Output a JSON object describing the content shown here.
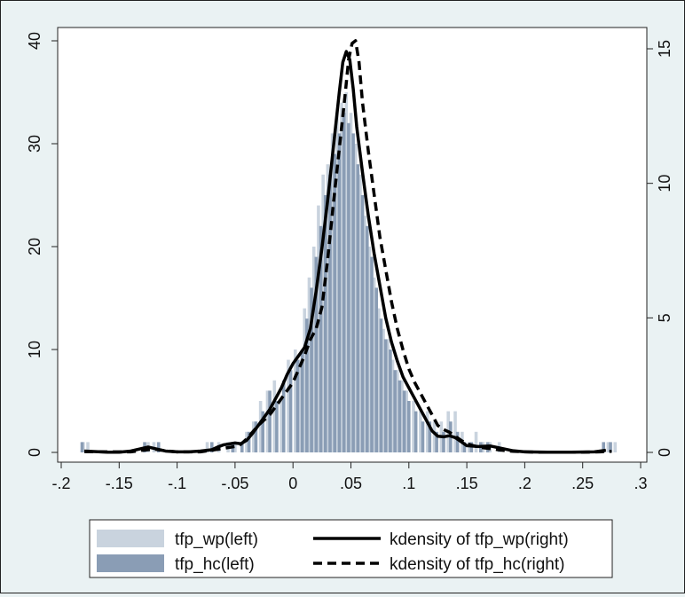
{
  "chart_data": {
    "type": "histogram-density",
    "title": "",
    "xlabel": "",
    "ylabel_left": "",
    "ylabel_right": "",
    "x_range": [
      -0.2,
      0.3
    ],
    "y_left_range": [
      0,
      40
    ],
    "y_right_range": [
      0,
      15
    ],
    "x_ticks": [
      {
        "value": -0.2,
        "label": "-.2"
      },
      {
        "value": -0.15,
        "label": "-.15"
      },
      {
        "value": -0.1,
        "label": "-.1"
      },
      {
        "value": -0.05,
        "label": "-.05"
      },
      {
        "value": 0,
        "label": "0"
      },
      {
        "value": 0.05,
        "label": ".05"
      },
      {
        "value": 0.1,
        "label": ".1"
      },
      {
        "value": 0.15,
        "label": ".15"
      },
      {
        "value": 0.2,
        "label": ".2"
      },
      {
        "value": 0.25,
        "label": ".25"
      },
      {
        "value": 0.3,
        "label": ".3"
      }
    ],
    "y_left_ticks": [
      {
        "value": 0,
        "label": "0"
      },
      {
        "value": 10,
        "label": "10"
      },
      {
        "value": 20,
        "label": "20"
      },
      {
        "value": 30,
        "label": "30"
      },
      {
        "value": 40,
        "label": "40"
      }
    ],
    "y_right_ticks": [
      {
        "value": 0,
        "label": "0"
      },
      {
        "value": 5,
        "label": "5"
      },
      {
        "value": 10,
        "label": "10"
      },
      {
        "value": 15,
        "label": "15"
      }
    ],
    "histograms": [
      {
        "name": "tfp_wp(left)",
        "color": "#c9d3de",
        "bins": [
          [
            -0.181,
            1
          ],
          [
            -0.177,
            1
          ],
          [
            -0.125,
            1
          ],
          [
            -0.12,
            1
          ],
          [
            -0.074,
            1
          ],
          [
            -0.064,
            1
          ],
          [
            -0.056,
            1
          ],
          [
            -0.05,
            1
          ],
          [
            -0.044,
            1
          ],
          [
            -0.04,
            2
          ],
          [
            -0.034,
            3
          ],
          [
            -0.028,
            5
          ],
          [
            -0.022,
            6
          ],
          [
            -0.016,
            7
          ],
          [
            -0.01,
            5
          ],
          [
            -0.004,
            9
          ],
          [
            0.002,
            10
          ],
          [
            0.006,
            9
          ],
          [
            0.01,
            14
          ],
          [
            0.014,
            17
          ],
          [
            0.018,
            20
          ],
          [
            0.022,
            24
          ],
          [
            0.026,
            27
          ],
          [
            0.03,
            28
          ],
          [
            0.034,
            31
          ],
          [
            0.038,
            33
          ],
          [
            0.042,
            34
          ],
          [
            0.046,
            35
          ],
          [
            0.05,
            33
          ],
          [
            0.054,
            30
          ],
          [
            0.058,
            27
          ],
          [
            0.062,
            23
          ],
          [
            0.066,
            20
          ],
          [
            0.07,
            17
          ],
          [
            0.074,
            14
          ],
          [
            0.078,
            12
          ],
          [
            0.082,
            11
          ],
          [
            0.086,
            9
          ],
          [
            0.09,
            8
          ],
          [
            0.094,
            7
          ],
          [
            0.098,
            6
          ],
          [
            0.104,
            5
          ],
          [
            0.11,
            4
          ],
          [
            0.116,
            4
          ],
          [
            0.122,
            3
          ],
          [
            0.128,
            3
          ],
          [
            0.134,
            4
          ],
          [
            0.14,
            4
          ],
          [
            0.146,
            2
          ],
          [
            0.152,
            1
          ],
          [
            0.158,
            2
          ],
          [
            0.164,
            1
          ],
          [
            0.17,
            1
          ],
          [
            0.178,
            1
          ],
          [
            0.272,
            1
          ],
          [
            0.278,
            1
          ]
        ]
      },
      {
        "name": "tfp_hc(left)",
        "color": "#8a9db5",
        "bins": [
          [
            -0.182,
            1
          ],
          [
            -0.128,
            1
          ],
          [
            -0.116,
            1
          ],
          [
            -0.07,
            1
          ],
          [
            -0.052,
            1
          ],
          [
            -0.044,
            1
          ],
          [
            -0.038,
            2
          ],
          [
            -0.032,
            3
          ],
          [
            -0.026,
            4
          ],
          [
            -0.02,
            6
          ],
          [
            -0.014,
            5
          ],
          [
            -0.008,
            7
          ],
          [
            -0.002,
            8
          ],
          [
            0.004,
            9
          ],
          [
            0.008,
            10
          ],
          [
            0.012,
            13
          ],
          [
            0.016,
            16
          ],
          [
            0.02,
            19
          ],
          [
            0.024,
            22
          ],
          [
            0.028,
            25
          ],
          [
            0.032,
            27
          ],
          [
            0.036,
            29
          ],
          [
            0.04,
            31
          ],
          [
            0.044,
            33
          ],
          [
            0.048,
            32
          ],
          [
            0.052,
            31
          ],
          [
            0.056,
            28
          ],
          [
            0.06,
            25
          ],
          [
            0.064,
            22
          ],
          [
            0.068,
            19
          ],
          [
            0.072,
            16
          ],
          [
            0.076,
            13
          ],
          [
            0.08,
            11
          ],
          [
            0.084,
            10
          ],
          [
            0.088,
            8
          ],
          [
            0.092,
            7
          ],
          [
            0.096,
            6
          ],
          [
            0.1,
            5
          ],
          [
            0.106,
            4
          ],
          [
            0.112,
            3
          ],
          [
            0.118,
            3
          ],
          [
            0.124,
            2
          ],
          [
            0.13,
            2
          ],
          [
            0.136,
            3
          ],
          [
            0.142,
            2
          ],
          [
            0.148,
            1
          ],
          [
            0.154,
            1
          ],
          [
            0.162,
            1
          ],
          [
            0.168,
            1
          ],
          [
            0.268,
            1
          ],
          [
            0.274,
            1
          ]
        ]
      }
    ],
    "density_lines": [
      {
        "name": "kdensity of tfp_wp(right)",
        "color": "#000000",
        "dash": "solid",
        "points": [
          [
            -0.18,
            0.05
          ],
          [
            -0.17,
            0.03
          ],
          [
            -0.16,
            0.01
          ],
          [
            -0.15,
            0.01
          ],
          [
            -0.14,
            0.05
          ],
          [
            -0.13,
            0.15
          ],
          [
            -0.125,
            0.2
          ],
          [
            -0.12,
            0.15
          ],
          [
            -0.11,
            0.05
          ],
          [
            -0.1,
            0.02
          ],
          [
            -0.09,
            0.02
          ],
          [
            -0.08,
            0.05
          ],
          [
            -0.07,
            0.1
          ],
          [
            -0.065,
            0.2
          ],
          [
            -0.06,
            0.28
          ],
          [
            -0.05,
            0.35
          ],
          [
            -0.045,
            0.32
          ],
          [
            -0.04,
            0.45
          ],
          [
            -0.035,
            0.7
          ],
          [
            -0.03,
            1.0
          ],
          [
            -0.02,
            1.6
          ],
          [
            -0.01,
            2.4
          ],
          [
            -0.005,
            2.9
          ],
          [
            0.0,
            3.3
          ],
          [
            0.005,
            3.6
          ],
          [
            0.01,
            3.9
          ],
          [
            0.015,
            4.6
          ],
          [
            0.02,
            6.0
          ],
          [
            0.025,
            7.6
          ],
          [
            0.03,
            9.4
          ],
          [
            0.035,
            11.4
          ],
          [
            0.04,
            13.4
          ],
          [
            0.043,
            14.5
          ],
          [
            0.046,
            14.9
          ],
          [
            0.049,
            14.6
          ],
          [
            0.052,
            13.5
          ],
          [
            0.055,
            12.1
          ],
          [
            0.06,
            10.4
          ],
          [
            0.065,
            8.8
          ],
          [
            0.07,
            7.4
          ],
          [
            0.075,
            6.2
          ],
          [
            0.08,
            5.0
          ],
          [
            0.085,
            4.1
          ],
          [
            0.09,
            3.4
          ],
          [
            0.095,
            2.8
          ],
          [
            0.1,
            2.4
          ],
          [
            0.105,
            2.0
          ],
          [
            0.11,
            1.6
          ],
          [
            0.115,
            1.2
          ],
          [
            0.12,
            0.8
          ],
          [
            0.125,
            0.6
          ],
          [
            0.13,
            0.58
          ],
          [
            0.135,
            0.62
          ],
          [
            0.14,
            0.55
          ],
          [
            0.145,
            0.4
          ],
          [
            0.15,
            0.25
          ],
          [
            0.16,
            0.22
          ],
          [
            0.17,
            0.24
          ],
          [
            0.18,
            0.15
          ],
          [
            0.19,
            0.06
          ],
          [
            0.2,
            0.02
          ],
          [
            0.22,
            0.01
          ],
          [
            0.24,
            0.01
          ],
          [
            0.26,
            0.02
          ],
          [
            0.27,
            0.08
          ]
        ]
      },
      {
        "name": "kdensity of tfp_hc(right)",
        "color": "#000000",
        "dash": "dashed",
        "points": [
          [
            -0.18,
            0.03
          ],
          [
            -0.16,
            0.02
          ],
          [
            -0.14,
            0.02
          ],
          [
            -0.13,
            0.08
          ],
          [
            -0.12,
            0.12
          ],
          [
            -0.11,
            0.06
          ],
          [
            -0.1,
            0.02
          ],
          [
            -0.08,
            0.02
          ],
          [
            -0.07,
            0.08
          ],
          [
            -0.06,
            0.15
          ],
          [
            -0.05,
            0.22
          ],
          [
            -0.045,
            0.3
          ],
          [
            -0.04,
            0.5
          ],
          [
            -0.035,
            0.75
          ],
          [
            -0.03,
            1.0
          ],
          [
            -0.02,
            1.4
          ],
          [
            -0.01,
            2.0
          ],
          [
            0.0,
            2.6
          ],
          [
            0.005,
            3.1
          ],
          [
            0.01,
            3.6
          ],
          [
            0.015,
            4.2
          ],
          [
            0.02,
            4.6
          ],
          [
            0.025,
            5.4
          ],
          [
            0.03,
            7.2
          ],
          [
            0.035,
            9.3
          ],
          [
            0.04,
            11.3
          ],
          [
            0.045,
            13.3
          ],
          [
            0.048,
            14.6
          ],
          [
            0.051,
            15.2
          ],
          [
            0.054,
            15.3
          ],
          [
            0.057,
            14.5
          ],
          [
            0.06,
            13.0
          ],
          [
            0.065,
            11.2
          ],
          [
            0.07,
            9.6
          ],
          [
            0.075,
            8.0
          ],
          [
            0.08,
            6.8
          ],
          [
            0.085,
            5.6
          ],
          [
            0.09,
            4.6
          ],
          [
            0.095,
            3.8
          ],
          [
            0.1,
            3.1
          ],
          [
            0.105,
            2.6
          ],
          [
            0.11,
            2.2
          ],
          [
            0.115,
            1.8
          ],
          [
            0.12,
            1.4
          ],
          [
            0.125,
            1.0
          ],
          [
            0.13,
            0.85
          ],
          [
            0.135,
            0.75
          ],
          [
            0.14,
            0.6
          ],
          [
            0.145,
            0.45
          ],
          [
            0.15,
            0.32
          ],
          [
            0.16,
            0.2
          ],
          [
            0.17,
            0.14
          ],
          [
            0.18,
            0.08
          ],
          [
            0.19,
            0.04
          ],
          [
            0.21,
            0.01
          ],
          [
            0.25,
            0.01
          ],
          [
            0.265,
            0.02
          ],
          [
            0.275,
            0.04
          ]
        ]
      }
    ],
    "legend_placement": "bottom",
    "grid": false
  }
}
